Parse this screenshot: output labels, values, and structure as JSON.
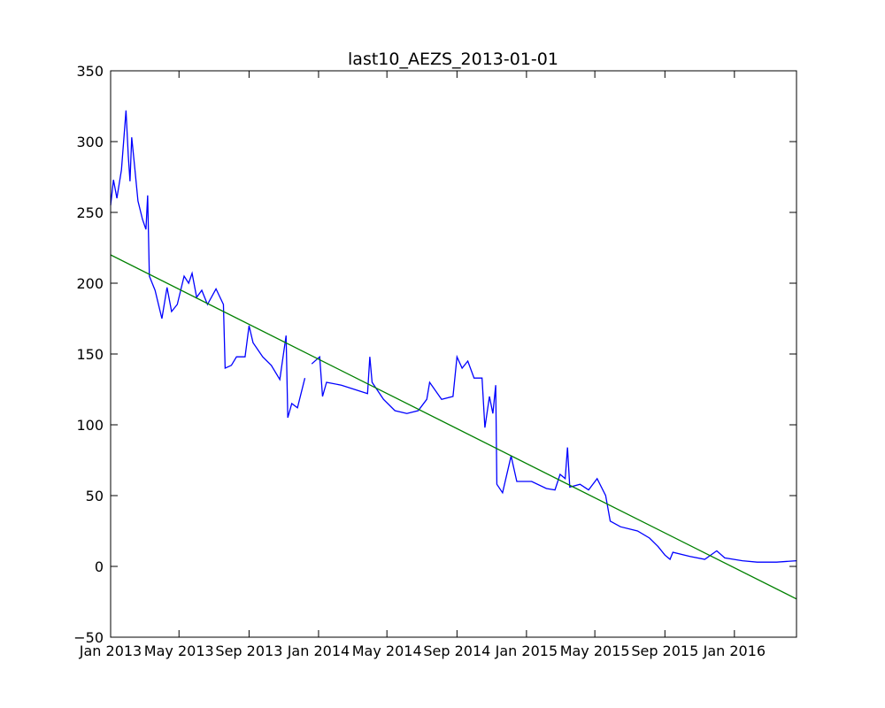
{
  "chart_data": {
    "type": "line",
    "title": "last10_AEZS_2013-01-01",
    "xlim": [
      "2013-01-01",
      "2016-04-19"
    ],
    "ylim": [
      -50,
      350
    ],
    "yticks": [
      {
        "value": -50,
        "label": "−50"
      },
      0,
      50,
      100,
      150,
      200,
      250,
      300,
      350
    ],
    "xticks": [
      {
        "value": "2013-01-01",
        "label": "Jan 2013"
      },
      {
        "value": "2013-05-01",
        "label": "May 2013"
      },
      {
        "value": "2013-09-01",
        "label": "Sep 2013"
      },
      {
        "value": "2014-01-01",
        "label": "Jan 2014"
      },
      {
        "value": "2014-05-01",
        "label": "May 2014"
      },
      {
        "value": "2014-09-01",
        "label": "Sep 2014"
      },
      {
        "value": "2015-01-01",
        "label": "Jan 2015"
      },
      {
        "value": "2015-05-01",
        "label": "May 2015"
      },
      {
        "value": "2015-09-01",
        "label": "Sep 2015"
      },
      {
        "value": "2016-01-01",
        "label": "Jan 2016"
      }
    ],
    "series": [
      {
        "color": "#0000ff",
        "x": [
          "2013-01-01",
          "2013-01-06",
          "2013-01-12",
          "2013-01-20",
          "2013-01-28",
          "2013-02-01",
          "2013-02-04",
          "2013-02-07",
          "2013-02-12",
          "2013-02-18",
          "2013-02-26",
          "2013-03-04",
          "2013-03-07",
          "2013-03-10",
          "2013-03-20",
          "2013-04-01",
          "2013-04-10",
          "2013-04-18",
          "2013-04-28",
          "2013-05-10",
          "2013-05-18",
          "2013-05-24",
          "2013-06-01",
          "2013-06-10",
          "2013-06-20",
          "2013-07-05",
          "2013-07-18",
          "2013-07-21",
          "2013-08-01",
          "2013-08-10",
          "2013-08-25",
          "2013-09-01",
          "2013-09-08",
          "2013-09-25",
          "2013-10-10",
          "2013-10-25",
          "2013-11-05",
          "2013-11-08",
          "2013-11-15",
          "2013-11-25",
          "2013-12-08",
          "2013-12-14",
          "2013-12-20",
          "2014-01-03",
          "2014-01-08",
          "2014-01-15",
          "2014-02-10",
          "2014-03-05",
          "2014-03-28",
          "2014-04-01",
          "2014-04-05",
          "2014-04-25",
          "2014-05-15",
          "2014-06-05",
          "2014-06-25",
          "2014-07-10",
          "2014-07-15",
          "2014-08-05",
          "2014-08-25",
          "2014-09-01",
          "2014-09-10",
          "2014-09-20",
          "2014-10-01",
          "2014-10-15",
          "2014-10-20",
          "2014-10-28",
          "2014-11-03",
          "2014-11-08",
          "2014-11-10",
          "2014-11-20",
          "2014-12-05",
          "2014-12-15",
          "2015-01-10",
          "2015-02-05",
          "2015-02-20",
          "2015-03-01",
          "2015-03-10",
          "2015-03-14",
          "2015-03-18",
          "2015-04-05",
          "2015-04-20",
          "2015-05-05",
          "2015-05-20",
          "2015-05-28",
          "2015-06-15",
          "2015-07-15",
          "2015-08-05",
          "2015-08-20",
          "2015-09-01",
          "2015-09-10",
          "2015-09-15",
          "2015-10-15",
          "2015-11-10",
          "2015-12-01",
          "2015-12-15",
          "2016-01-15",
          "2016-02-10",
          "2016-03-15",
          "2016-04-19"
        ],
        "values": [
          255,
          273,
          260,
          280,
          322,
          290,
          272,
          303,
          283,
          258,
          245,
          238,
          262,
          205,
          195,
          175,
          197,
          180,
          185,
          205,
          200,
          207,
          190,
          195,
          185,
          196,
          185,
          140,
          142,
          148,
          148,
          170,
          158,
          148,
          142,
          132,
          163,
          105,
          115,
          112,
          133,
          null,
          143,
          148,
          120,
          130,
          128,
          125,
          122,
          148,
          130,
          118,
          110,
          108,
          110,
          118,
          130,
          118,
          120,
          148,
          140,
          145,
          133,
          133,
          98,
          120,
          108,
          128,
          58,
          52,
          78,
          60,
          60,
          55,
          54,
          65,
          62,
          84,
          56,
          58,
          54,
          62,
          50,
          32,
          28,
          25,
          20,
          14,
          8,
          5,
          10,
          7,
          5,
          11,
          6,
          4,
          3,
          3,
          4
        ]
      },
      {
        "color": "#008000",
        "x": [
          "2013-01-01",
          "2016-04-19"
        ],
        "values": [
          220,
          -23
        ]
      }
    ]
  }
}
